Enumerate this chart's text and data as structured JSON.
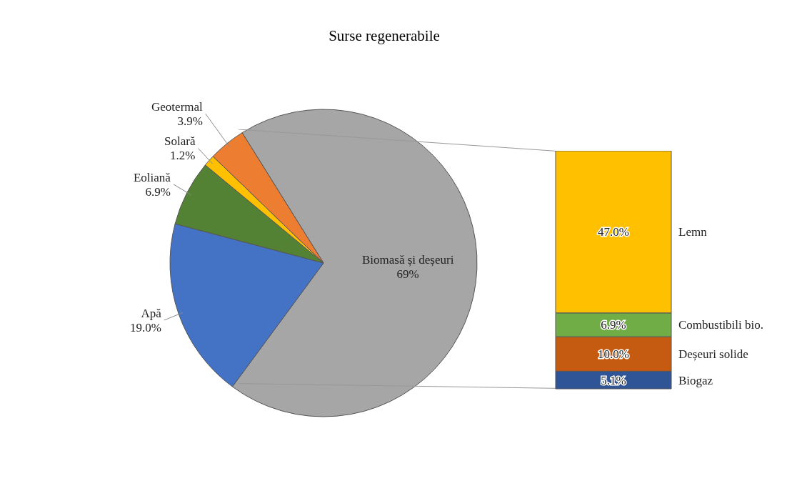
{
  "chart_data": [
    {
      "type": "pie",
      "title": "Surse regenerabile",
      "categories": [
        "Biomasă și deșeuri",
        "Apă",
        "Eoliană",
        "Solară",
        "Geotermal"
      ],
      "values": [
        69,
        19.0,
        6.9,
        1.2,
        3.9
      ],
      "value_labels": [
        "69%",
        "19.0%",
        "6.9%",
        "1.2%",
        "3.9%"
      ],
      "colors": [
        "#a6a6a6",
        "#4472c4",
        "#548235",
        "#ffc000",
        "#ed7d31"
      ]
    },
    {
      "type": "bar",
      "stacked": true,
      "categories": [
        null
      ],
      "series": [
        {
          "name": "Biogaz",
          "color": "#2f5597",
          "values": [
            5.1
          ],
          "value_labels": [
            "5.1%"
          ]
        },
        {
          "name": "Deșeuri solide",
          "color": "#c55a11",
          "values": [
            10.0
          ],
          "value_labels": [
            "10.0%"
          ]
        },
        {
          "name": "Combustibili bio.",
          "color": "#70ad47",
          "values": [
            6.9
          ],
          "value_labels": [
            "6.9%"
          ]
        },
        {
          "name": "Lemn",
          "color": "#ffc000",
          "values": [
            47.0
          ],
          "value_labels": [
            "47.0%"
          ]
        }
      ]
    }
  ]
}
